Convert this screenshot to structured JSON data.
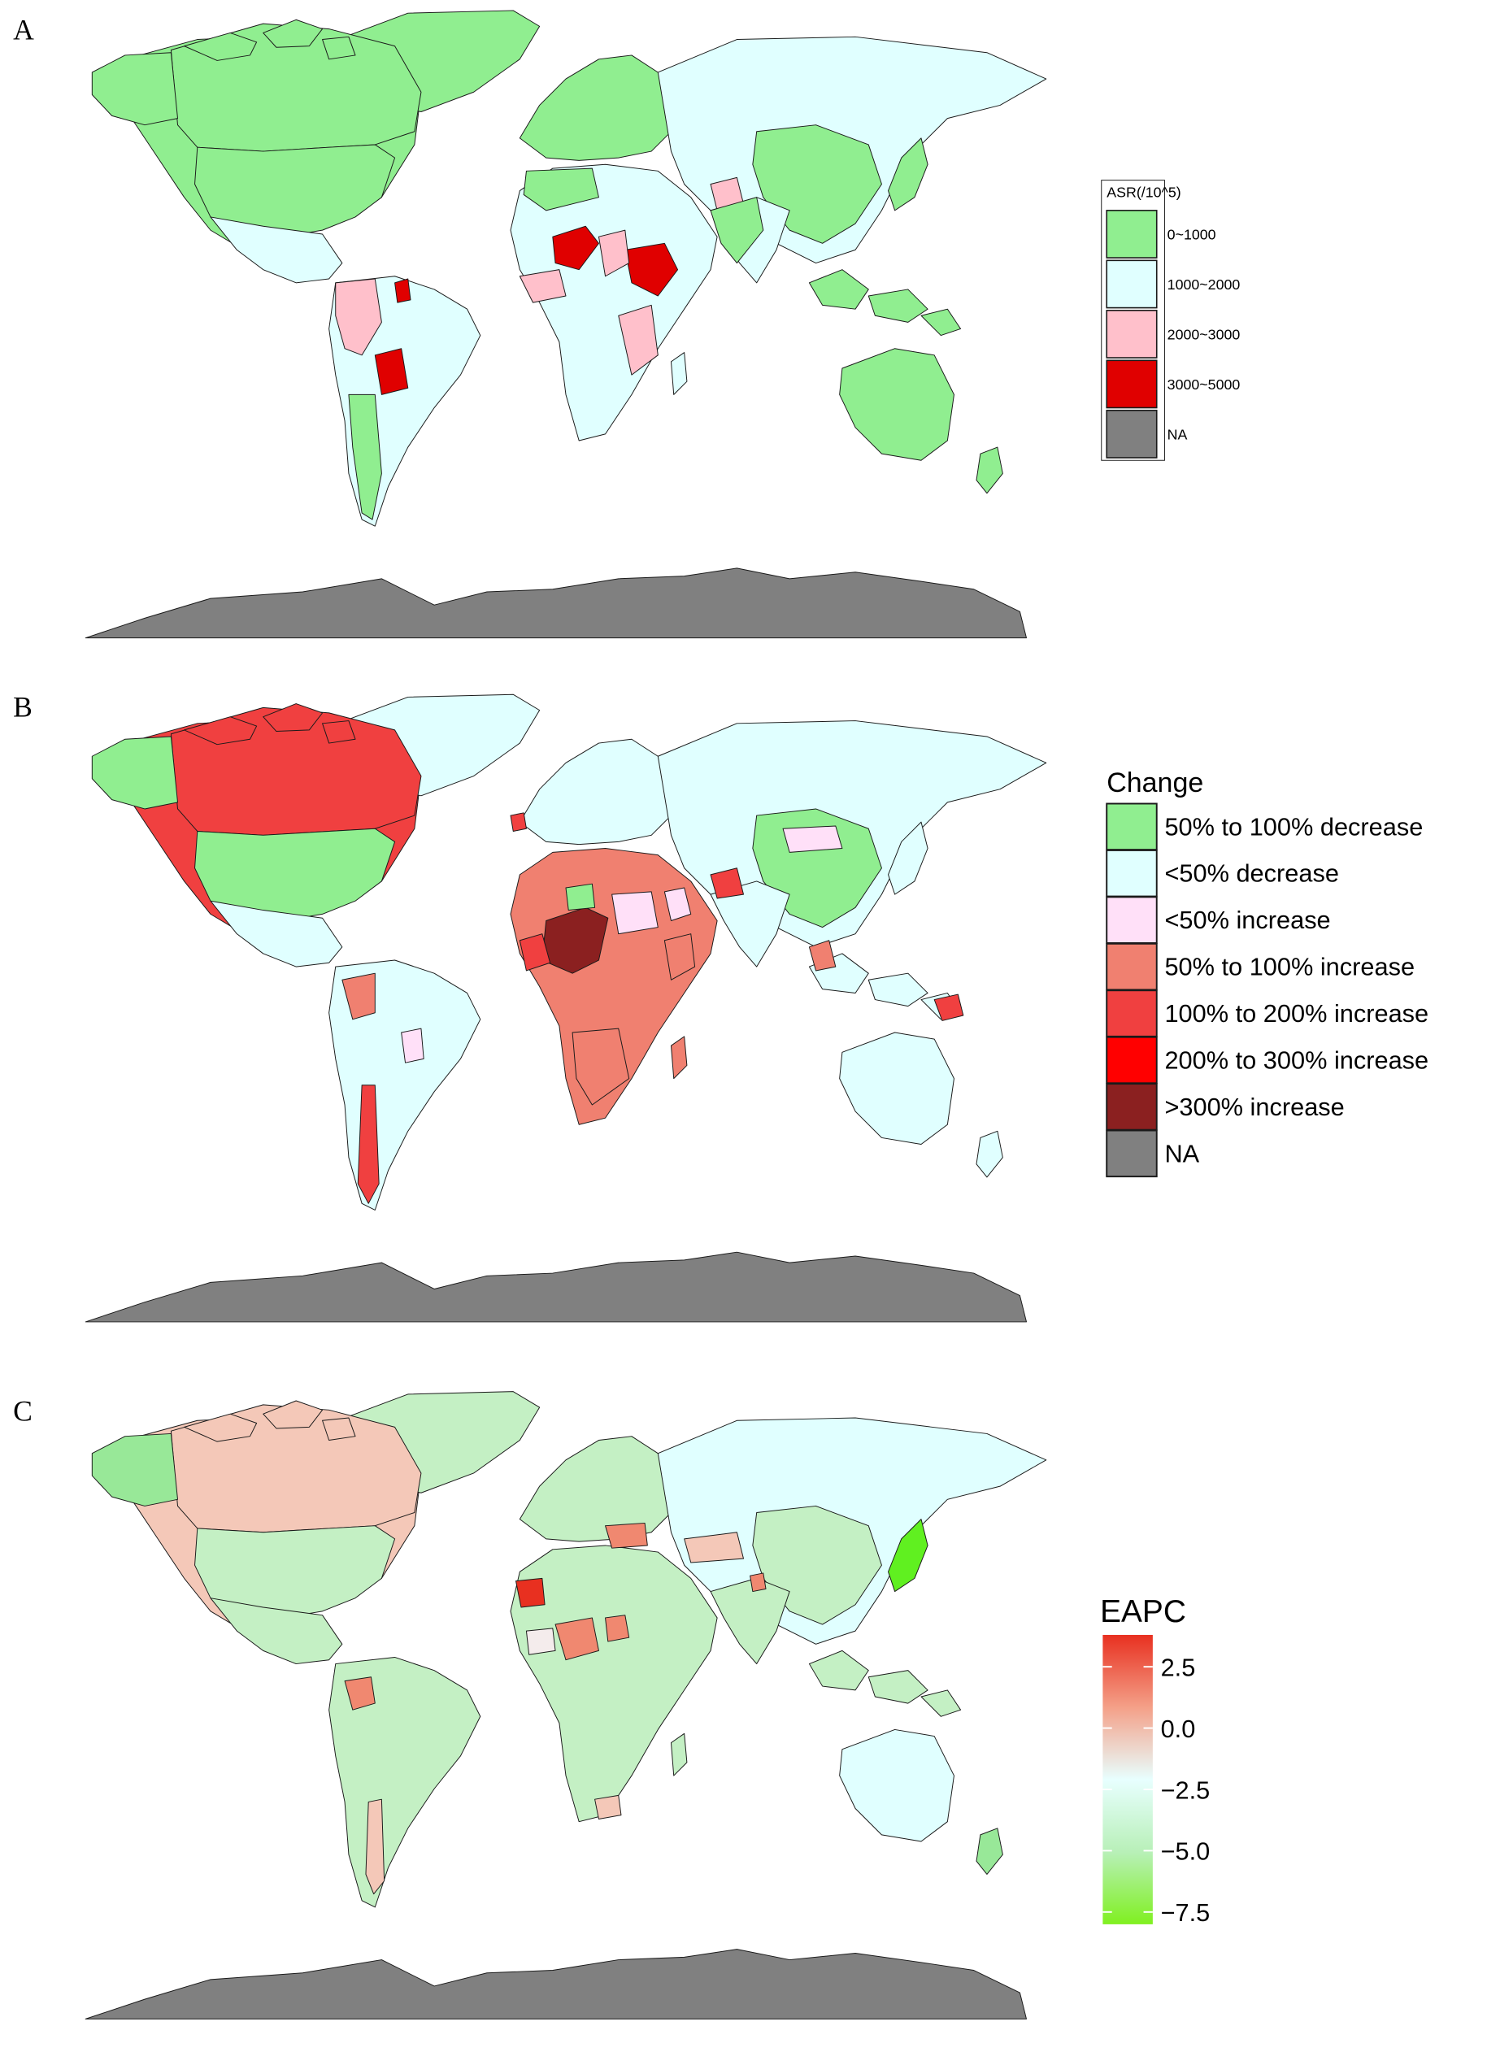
{
  "panels": [
    {
      "letter": "A",
      "legend": {
        "title": "ASR(/10^5)",
        "items": [
          {
            "label": "0~1000",
            "color": "#90EE90"
          },
          {
            "label": "1000~2000",
            "color": "#E0FFFF"
          },
          {
            "label": "2000~3000",
            "color": "#FFC0CB"
          },
          {
            "label": "3000~5000",
            "color": "#E00000"
          },
          {
            "label": "NA",
            "color": "#808080"
          }
        ]
      }
    },
    {
      "letter": "B",
      "legend": {
        "title": "Change",
        "items": [
          {
            "label": "50% to 100% decrease",
            "color": "#90EE90"
          },
          {
            "label": "<50% decrease",
            "color": "#E0FFFF"
          },
          {
            "label": "<50% increase",
            "color": "#FFE0F8"
          },
          {
            "label": "50% to 100% increase",
            "color": "#F08070"
          },
          {
            "label": "100% to 200% increase",
            "color": "#F04040"
          },
          {
            "label": "200% to 300% increase",
            "color": "#FF0000"
          },
          {
            "label": ">300% increase",
            "color": "#8B2020"
          },
          {
            "label": "NA",
            "color": "#808080"
          }
        ]
      }
    },
    {
      "letter": "C",
      "legend": {
        "title": "EAPC",
        "ticks": [
          "2.5",
          "0.0",
          "−2.5",
          "−5.0",
          "−7.5"
        ],
        "tick_values": [
          2.5,
          0.0,
          -2.5,
          -5.0,
          -7.5
        ],
        "range": [
          -8.0,
          3.8
        ],
        "gradient": [
          "#E83020",
          "#F4A088",
          "#E8FFFF",
          "#B8F0B8",
          "#80F020"
        ]
      }
    }
  ],
  "colors": {
    "antarctica": "#808080",
    "a": {
      "green": "#90EE90",
      "cyan": "#E0FFFF",
      "pink": "#FFC0CB",
      "red": "#E00000",
      "grey": "#808080"
    },
    "b": {
      "green": "#90EE90",
      "cyan": "#E0FFFF",
      "lpink": "#FFE0F8",
      "salmon": "#F08070",
      "red1": "#F04040",
      "red2": "#FF0000",
      "dred": "#8B2020",
      "grey": "#808080"
    },
    "c": {
      "cyan": "#E0FFFF",
      "green": "#C4F0C4",
      "green2": "#98E898",
      "lime": "#60F020",
      "peach": "#F4C8B8",
      "salmon": "#F08870",
      "red": "#E83020",
      "white": "#F4ECEC"
    }
  }
}
